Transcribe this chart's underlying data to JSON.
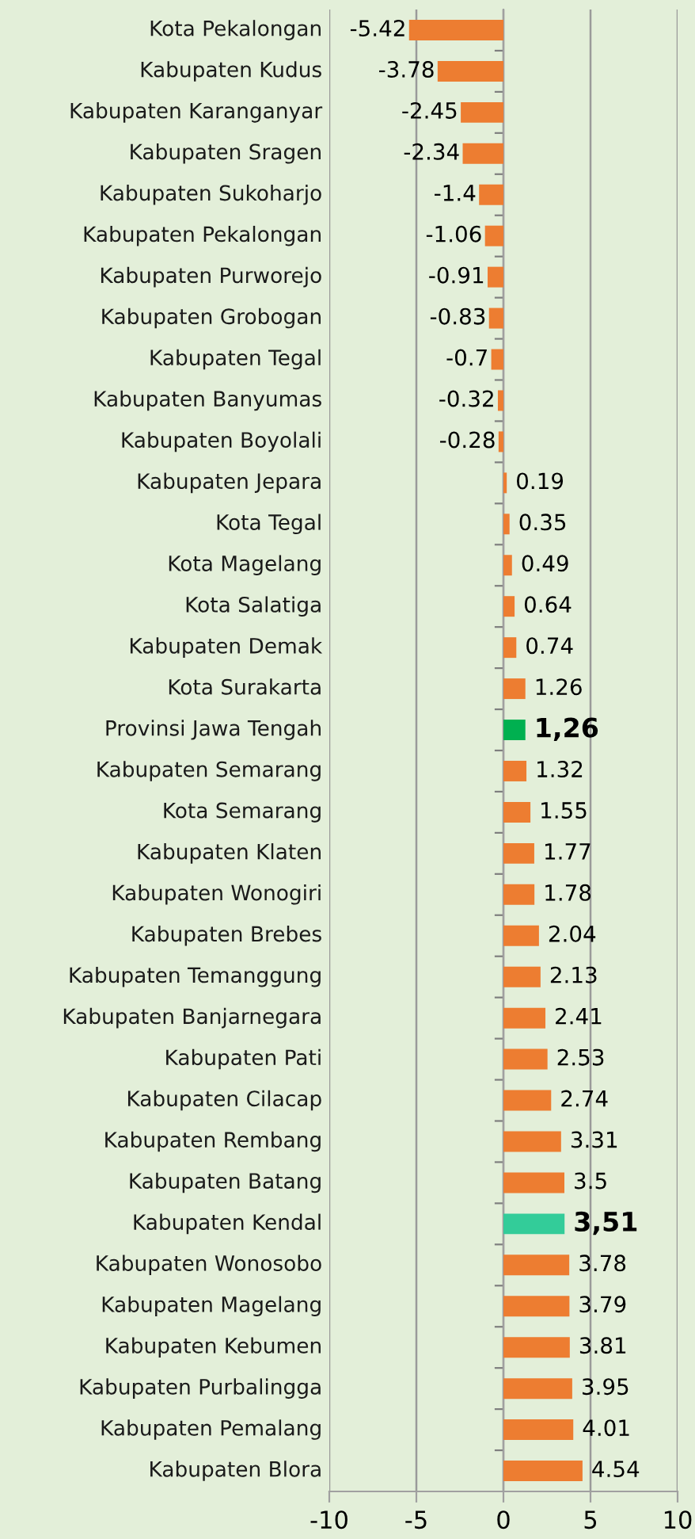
{
  "chart_data": {
    "type": "bar",
    "orientation": "horizontal",
    "categories": [
      "Kota Pekalongan",
      "Kabupaten Kudus",
      "Kabupaten Karanganyar",
      "Kabupaten Sragen",
      "Kabupaten Sukoharjo",
      "Kabupaten Pekalongan",
      "Kabupaten Purworejo",
      "Kabupaten Grobogan",
      "Kabupaten Tegal",
      "Kabupaten Banyumas",
      "Kabupaten Boyolali",
      "Kabupaten Jepara",
      "Kota Tegal",
      "Kota Magelang",
      "Kota Salatiga",
      "Kabupaten Demak",
      "Kota Surakarta",
      "Provinsi Jawa Tengah",
      "Kabupaten Semarang",
      "Kota Semarang",
      "Kabupaten Klaten",
      "Kabupaten Wonogiri",
      "Kabupaten Brebes",
      "Kabupaten Temanggung",
      "Kabupaten Banjarnegara",
      "Kabupaten Pati",
      "Kabupaten Cilacap",
      "Kabupaten Rembang",
      "Kabupaten Batang",
      "Kabupaten Kendal",
      "Kabupaten Wonosobo",
      "Kabupaten Magelang",
      "Kabupaten Kebumen",
      "Kabupaten Purbalingga",
      "Kabupaten Pemalang",
      "Kabupaten Blora"
    ],
    "values": [
      -5.42,
      -3.78,
      -2.45,
      -2.34,
      -1.4,
      -1.06,
      -0.91,
      -0.83,
      -0.7,
      -0.32,
      -0.28,
      0.19,
      0.35,
      0.49,
      0.64,
      0.74,
      1.26,
      1.26,
      1.32,
      1.55,
      1.77,
      1.78,
      2.04,
      2.13,
      2.41,
      2.53,
      2.74,
      3.31,
      3.5,
      3.51,
      3.78,
      3.79,
      3.81,
      3.95,
      4.01,
      4.54
    ],
    "value_labels": [
      "-5.42",
      "-3.78",
      "-2.45",
      "-2.34",
      "-1.4",
      "-1.06",
      "-0.91",
      "-0.83",
      "-0.7",
      "-0.32",
      "-0.28",
      "0.19",
      "0.35",
      "0.49",
      "0.64",
      "0.74",
      "1.26",
      "1,26",
      "1.32",
      "1.55",
      "1.77",
      "1.78",
      "2.04",
      "2.13",
      "2.41",
      "2.53",
      "2.74",
      "3.31",
      "3.5",
      "3,51",
      "3.78",
      "3.79",
      "3.81",
      "3.95",
      "4.01",
      "4.54"
    ],
    "colors": [
      "#ed7d31",
      "#ed7d31",
      "#ed7d31",
      "#ed7d31",
      "#ed7d31",
      "#ed7d31",
      "#ed7d31",
      "#ed7d31",
      "#ed7d31",
      "#ed7d31",
      "#ed7d31",
      "#ed7d31",
      "#ed7d31",
      "#ed7d31",
      "#ed7d31",
      "#ed7d31",
      "#ed7d31",
      "#00b050",
      "#ed7d31",
      "#ed7d31",
      "#ed7d31",
      "#ed7d31",
      "#ed7d31",
      "#ed7d31",
      "#ed7d31",
      "#ed7d31",
      "#ed7d31",
      "#ed7d31",
      "#ed7d31",
      "#33cc99",
      "#ed7d31",
      "#ed7d31",
      "#ed7d31",
      "#ed7d31",
      "#ed7d31",
      "#ed7d31"
    ],
    "xlim": [
      -10,
      10
    ],
    "xticks": [
      -10,
      -5,
      0,
      5,
      10
    ],
    "grid": "x"
  }
}
